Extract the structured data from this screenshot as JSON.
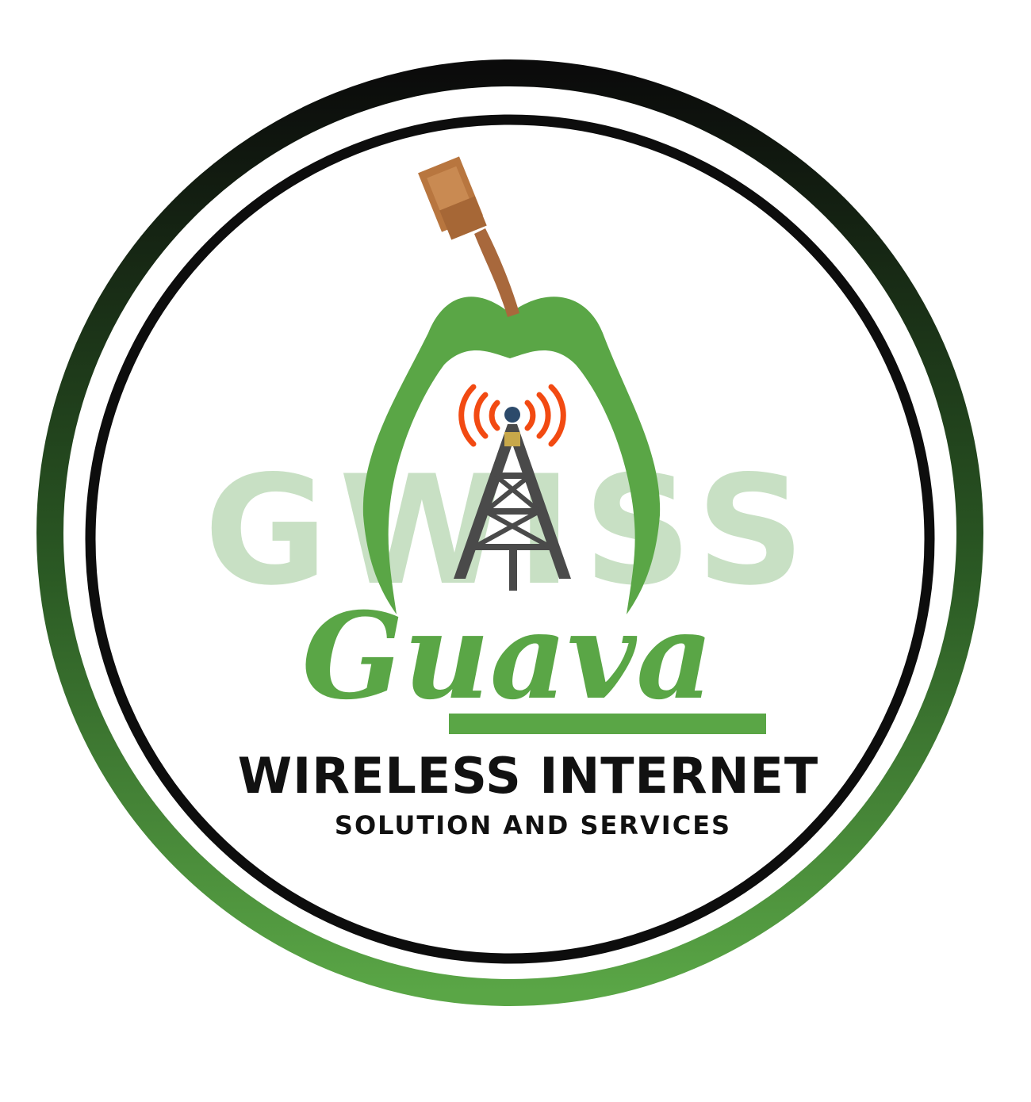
{
  "logo": {
    "watermark": "GWISS",
    "brand_name": "Guava",
    "headline": "WIRELESS INTERNET",
    "subline": "SOLUTION AND SERVICES"
  },
  "colors": {
    "brand_green": "#5aa646",
    "watermark_green": "#c8e0c4",
    "ring_dark": "#0d0d0d",
    "ring_green": "#3f7f33",
    "stem_brown": "#a8683c",
    "signal_red": "#f24a12",
    "tower_gray": "#4a4a4a",
    "text_black": "#111111"
  },
  "icons": {
    "stem": "ethernet-cable-stem-icon",
    "fruit": "guava-fruit-icon",
    "tower": "radio-tower-icon",
    "signal": "signal-waves-icon"
  }
}
